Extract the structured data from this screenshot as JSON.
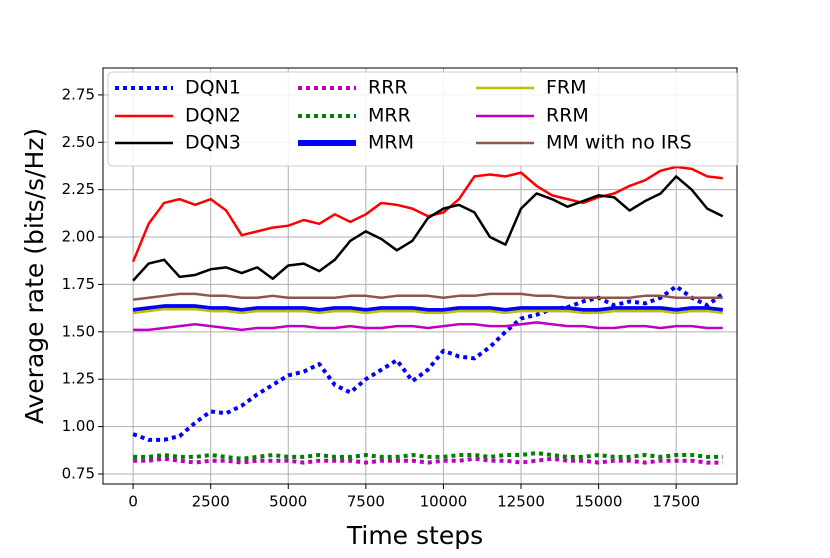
{
  "chart_data": {
    "type": "line",
    "xlabel": "Time steps",
    "ylabel": "Average rate (bits/s/Hz)",
    "x": [
      0,
      500,
      1000,
      1500,
      2000,
      2500,
      3000,
      3500,
      4000,
      4500,
      5000,
      5500,
      6000,
      6500,
      7000,
      7500,
      8000,
      8500,
      9000,
      9500,
      10000,
      10500,
      11000,
      11500,
      12000,
      12500,
      13000,
      13500,
      14000,
      14500,
      15000,
      15500,
      16000,
      16500,
      17000,
      17500,
      18000,
      18500,
      19000
    ],
    "xlim": [
      -970,
      19460
    ],
    "xticks": [
      0,
      2500,
      5000,
      7500,
      10000,
      12500,
      15000,
      17500
    ],
    "ylim": [
      0.697,
      2.892
    ],
    "yticks": [
      0.75,
      {
        "value": 1,
        "label": "1.00"
      },
      1.25,
      {
        "value": 1.5,
        "label": "1.50"
      },
      1.75,
      {
        "value": 2,
        "label": "2.00"
      },
      2.25,
      {
        "value": 2.5,
        "label": "2.50"
      },
      2.75
    ],
    "grid": true,
    "legend": "upper left",
    "series": [
      {
        "name": "DQN1",
        "color": "#0000ff",
        "style": "dotted",
        "values": [
          0.96,
          0.93,
          0.93,
          0.95,
          1.02,
          1.08,
          1.07,
          1.11,
          1.17,
          1.22,
          1.27,
          1.29,
          1.33,
          1.22,
          1.18,
          1.25,
          1.3,
          1.35,
          1.24,
          1.3,
          1.4,
          1.37,
          1.36,
          1.42,
          1.5,
          1.57,
          1.59,
          1.62,
          1.63,
          1.66,
          1.68,
          1.64,
          1.66,
          1.65,
          1.68,
          1.74,
          1.68,
          1.64,
          1.7
        ]
      },
      {
        "name": "DQN2",
        "color": "#ff0000",
        "style": "solid",
        "values": [
          1.87,
          2.07,
          2.18,
          2.2,
          2.17,
          2.2,
          2.14,
          2.01,
          2.03,
          2.05,
          2.06,
          2.09,
          2.07,
          2.12,
          2.08,
          2.12,
          2.18,
          2.17,
          2.15,
          2.11,
          2.13,
          2.2,
          2.32,
          2.33,
          2.32,
          2.34,
          2.27,
          2.22,
          2.2,
          2.18,
          2.21,
          2.23,
          2.27,
          2.3,
          2.35,
          2.37,
          2.36,
          2.32,
          2.31
        ]
      },
      {
        "name": "DQN3",
        "color": "#000000",
        "style": "solid",
        "values": [
          1.77,
          1.86,
          1.88,
          1.79,
          1.8,
          1.83,
          1.84,
          1.81,
          1.84,
          1.78,
          1.85,
          1.86,
          1.82,
          1.88,
          1.98,
          2.03,
          1.99,
          1.93,
          1.98,
          2.1,
          2.15,
          2.17,
          2.13,
          2.0,
          1.96,
          2.15,
          2.23,
          2.2,
          2.16,
          2.19,
          2.22,
          2.21,
          2.14,
          2.19,
          2.23,
          2.32,
          2.25,
          2.15,
          2.11
        ]
      },
      {
        "name": "RRR",
        "color": "#bf00bf",
        "style": "dotted",
        "values": [
          0.82,
          0.82,
          0.83,
          0.82,
          0.81,
          0.82,
          0.82,
          0.81,
          0.82,
          0.82,
          0.82,
          0.81,
          0.82,
          0.82,
          0.82,
          0.81,
          0.82,
          0.82,
          0.82,
          0.81,
          0.82,
          0.82,
          0.83,
          0.82,
          0.82,
          0.81,
          0.82,
          0.83,
          0.82,
          0.82,
          0.81,
          0.82,
          0.82,
          0.81,
          0.82,
          0.82,
          0.82,
          0.81,
          0.81
        ]
      },
      {
        "name": "MRR",
        "color": "#007f00",
        "style": "dotted",
        "values": [
          0.84,
          0.84,
          0.85,
          0.84,
          0.84,
          0.85,
          0.84,
          0.83,
          0.84,
          0.85,
          0.84,
          0.84,
          0.85,
          0.84,
          0.84,
          0.85,
          0.84,
          0.84,
          0.85,
          0.84,
          0.84,
          0.85,
          0.85,
          0.84,
          0.85,
          0.85,
          0.86,
          0.85,
          0.84,
          0.84,
          0.85,
          0.84,
          0.84,
          0.85,
          0.84,
          0.85,
          0.85,
          0.84,
          0.84
        ]
      },
      {
        "name": "MRM",
        "color": "#0000ff",
        "style": "thick",
        "values": [
          1.61,
          1.62,
          1.63,
          1.63,
          1.63,
          1.62,
          1.62,
          1.61,
          1.62,
          1.62,
          1.62,
          1.62,
          1.61,
          1.62,
          1.62,
          1.61,
          1.62,
          1.62,
          1.62,
          1.61,
          1.61,
          1.62,
          1.62,
          1.62,
          1.61,
          1.62,
          1.62,
          1.62,
          1.62,
          1.61,
          1.61,
          1.62,
          1.62,
          1.62,
          1.62,
          1.61,
          1.62,
          1.62,
          1.61
        ]
      },
      {
        "name": "FRM",
        "color": "#bfbf00",
        "style": "solid",
        "values": [
          1.6,
          1.61,
          1.62,
          1.62,
          1.62,
          1.61,
          1.61,
          1.6,
          1.61,
          1.61,
          1.61,
          1.61,
          1.6,
          1.61,
          1.61,
          1.6,
          1.61,
          1.61,
          1.61,
          1.6,
          1.6,
          1.61,
          1.61,
          1.61,
          1.6,
          1.61,
          1.61,
          1.61,
          1.61,
          1.6,
          1.6,
          1.61,
          1.61,
          1.61,
          1.61,
          1.6,
          1.61,
          1.61,
          1.6
        ]
      },
      {
        "name": "RRM",
        "color": "#bf00bf",
        "style": "solid",
        "values": [
          1.51,
          1.51,
          1.52,
          1.53,
          1.54,
          1.53,
          1.52,
          1.51,
          1.52,
          1.52,
          1.53,
          1.53,
          1.52,
          1.52,
          1.53,
          1.52,
          1.52,
          1.53,
          1.53,
          1.52,
          1.53,
          1.54,
          1.54,
          1.53,
          1.53,
          1.54,
          1.55,
          1.54,
          1.53,
          1.53,
          1.52,
          1.52,
          1.53,
          1.53,
          1.52,
          1.53,
          1.53,
          1.52,
          1.52
        ]
      },
      {
        "name": "MM with no IRS",
        "color": "#8c564b",
        "style": "solid",
        "values": [
          1.67,
          1.68,
          1.69,
          1.7,
          1.7,
          1.69,
          1.69,
          1.68,
          1.68,
          1.69,
          1.68,
          1.68,
          1.68,
          1.68,
          1.69,
          1.69,
          1.68,
          1.69,
          1.69,
          1.69,
          1.68,
          1.69,
          1.69,
          1.7,
          1.7,
          1.7,
          1.69,
          1.69,
          1.68,
          1.68,
          1.68,
          1.68,
          1.68,
          1.69,
          1.69,
          1.68,
          1.68,
          1.68,
          1.68
        ]
      }
    ]
  }
}
